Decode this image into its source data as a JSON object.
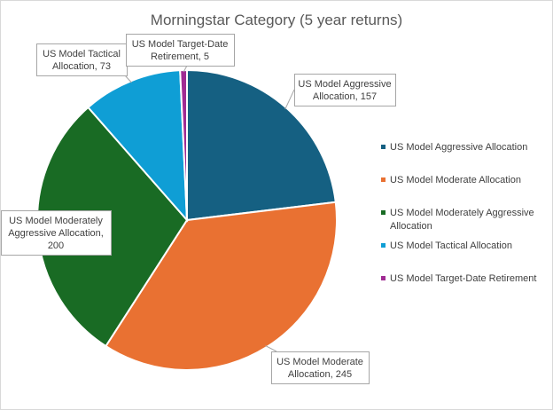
{
  "chart_data": {
    "type": "pie",
    "title": "Morningstar Category (5 year returns)",
    "series": [
      {
        "name": "US Model Aggressive Allocation",
        "value": 157,
        "color": "#156082",
        "label_lines": [
          "US Model Aggressive",
          "Allocation, 157"
        ]
      },
      {
        "name": "US Model Moderate Allocation",
        "value": 245,
        "color": "#E97132",
        "label_lines": [
          "US Model Moderate",
          "Allocation, 245"
        ]
      },
      {
        "name": "US Model Moderately Aggressive Allocation",
        "value": 200,
        "color": "#196B24",
        "label_lines": [
          "US Model Moderately",
          "Aggressive Allocation,",
          "200"
        ]
      },
      {
        "name": "US Model Tactical Allocation",
        "value": 73,
        "color": "#0F9ED5",
        "label_lines": [
          "US Model Tactical",
          "Allocation, 73"
        ]
      },
      {
        "name": "US Model Target-Date Retirement",
        "value": 5,
        "color": "#A02B93",
        "label_lines": [
          "US Model Target-Date",
          "Retirement, 5"
        ]
      }
    ],
    "legend": {
      "placement": "right",
      "entries": [
        [
          "US Model Aggressive Allocation"
        ],
        [
          "US Model Moderate Allocation"
        ],
        [
          "US Model Moderately Aggressive",
          "Allocation"
        ],
        [
          "US Model Tactical Allocation"
        ],
        [
          "US Model Target-Date Retirement"
        ]
      ]
    }
  }
}
